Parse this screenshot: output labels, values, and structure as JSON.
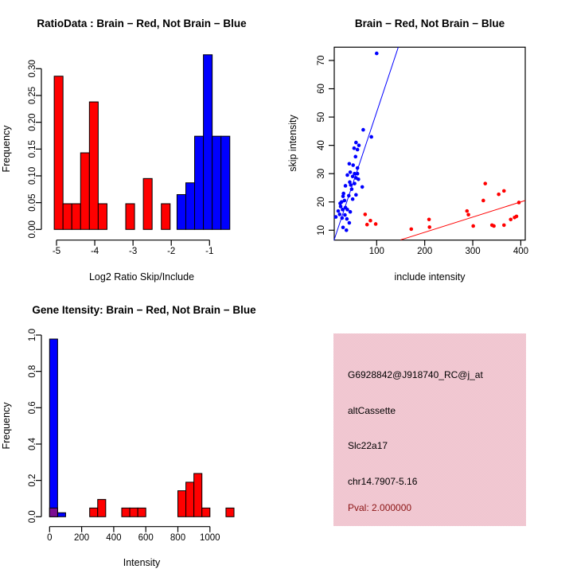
{
  "chart_data": [
    {
      "id": "ratio-histogram",
      "type": "bar",
      "title": "RatioData : Brain − Red, Not Brain − Blue",
      "xlabel": "Log2 Ratio Skip/Include",
      "ylabel": "Frequency",
      "xlim": [
        -5.3,
        -0.3
      ],
      "ylim": [
        0,
        0.33
      ],
      "grid": false,
      "xticks": {
        "values": [
          -5,
          -4,
          -3,
          -2,
          -1
        ],
        "labels": [
          "-5",
          "-4",
          "-3",
          "-2",
          "-1"
        ]
      },
      "yticks": {
        "values": [
          0,
          0.05,
          0.1,
          0.15,
          0.2,
          0.25,
          0.3
        ],
        "labels": [
          "0.00",
          "0.05",
          "0.10",
          "0.15",
          "0.20",
          "0.25",
          "0.30"
        ]
      },
      "series": [
        {
          "name": "Brain",
          "color": "#ff0000",
          "bins": [
            [
              -5.06,
              -4.83,
              0.286
            ],
            [
              -4.83,
              -4.6,
              0.048
            ],
            [
              -4.6,
              -4.37,
              0.048
            ],
            [
              -4.37,
              -4.14,
              0.143
            ],
            [
              -4.14,
              -3.91,
              0.238
            ],
            [
              -3.91,
              -3.68,
              0.048
            ],
            [
              -3.19,
              -2.96,
              0.048
            ],
            [
              -2.73,
              -2.5,
              0.095
            ],
            [
              -2.26,
              -2.03,
              0.048
            ]
          ]
        },
        {
          "name": "Not Brain",
          "color": "#0000ff",
          "bins": [
            [
              -1.85,
              -1.62,
              0.065
            ],
            [
              -1.62,
              -1.39,
              0.087
            ],
            [
              -1.39,
              -1.16,
              0.174
            ],
            [
              -1.16,
              -0.93,
              0.326
            ],
            [
              -0.93,
              -0.7,
              0.174
            ],
            [
              -0.7,
              -0.47,
              0.174
            ]
          ]
        }
      ]
    },
    {
      "id": "intensity-scatter",
      "type": "scatter",
      "title": "Brain − Red, Not Brain − Blue",
      "xlabel": "include intensity",
      "ylabel": "skip intensity",
      "xlim": [
        11,
        410
      ],
      "ylim": [
        6.3,
        75
      ],
      "grid": false,
      "xticks": {
        "values": [
          100,
          200,
          300,
          400
        ],
        "labels": [
          "100",
          "200",
          "300",
          "400"
        ]
      },
      "yticks": {
        "values": [
          10,
          20,
          30,
          40,
          50,
          60,
          70
        ],
        "labels": [
          "10",
          "20",
          "30",
          "40",
          "50",
          "60",
          "70"
        ]
      },
      "series": [
        {
          "name": "Not Brain",
          "color": "#0000ff",
          "fit_line": {
            "x1": 11.3,
            "y1": 6.5,
            "x2": 145,
            "y2": 74.7
          },
          "points": [
            [
              100,
              72.5
            ],
            [
              72,
              45.5
            ],
            [
              89,
              43
            ],
            [
              57,
              41
            ],
            [
              63,
              40
            ],
            [
              53,
              39
            ],
            [
              60,
              38.5
            ],
            [
              56,
              36
            ],
            [
              43,
              33.5
            ],
            [
              51,
              33
            ],
            [
              60,
              32
            ],
            [
              45,
              30.5
            ],
            [
              54,
              30
            ],
            [
              60,
              30
            ],
            [
              39,
              29.5
            ],
            [
              50,
              29
            ],
            [
              57,
              28.5
            ],
            [
              62,
              28
            ],
            [
              44,
              27
            ],
            [
              46,
              26
            ],
            [
              54,
              26.5
            ],
            [
              70,
              25.3
            ],
            [
              35,
              25.7
            ],
            [
              48,
              24.5
            ],
            [
              57,
              22.5
            ],
            [
              42,
              22.2
            ],
            [
              31,
              23
            ],
            [
              30,
              22
            ],
            [
              50,
              21
            ],
            [
              33,
              20.5
            ],
            [
              27,
              20
            ],
            [
              24,
              19.5
            ],
            [
              25,
              18.4
            ],
            [
              35,
              18
            ],
            [
              29,
              17.3
            ],
            [
              39,
              17.3
            ],
            [
              20,
              16.8
            ],
            [
              45,
              16.5
            ],
            [
              23,
              15.6
            ],
            [
              34,
              15.4
            ],
            [
              15,
              14.7
            ],
            [
              28,
              14.3
            ],
            [
              38,
              14
            ],
            [
              43,
              12.6
            ],
            [
              30,
              11
            ],
            [
              37,
              10
            ]
          ]
        },
        {
          "name": "Brain",
          "color": "#ff0000",
          "fit_line": {
            "x1": 150,
            "y1": 6.6,
            "x2": 409,
            "y2": 20.5
          },
          "points": [
            [
              76,
              15.6
            ],
            [
              87,
              13.4
            ],
            [
              80,
              12
            ],
            [
              98,
              12.2
            ],
            [
              172,
              10.4
            ],
            [
              209,
              13.8
            ],
            [
              210,
              11.1
            ],
            [
              288,
              16.8
            ],
            [
              291,
              15.5
            ],
            [
              301,
              11.5
            ],
            [
              322,
              20.5
            ],
            [
              326,
              26.5
            ],
            [
              340,
              11.8
            ],
            [
              344,
              11.5
            ],
            [
              354,
              22.7
            ],
            [
              365,
              23.9
            ],
            [
              365,
              11.8
            ],
            [
              379,
              13.8
            ],
            [
              387,
              14.5
            ],
            [
              391,
              14.9
            ],
            [
              396,
              19.8
            ]
          ]
        }
      ]
    },
    {
      "id": "gene-intensity-histogram",
      "type": "bar",
      "title": "Gene Itensity: Brain − Red, Not Brain − Blue",
      "xlabel": "Intensity",
      "ylabel": "Frequency",
      "xlim": [
        0,
        1150
      ],
      "ylim": [
        0,
        1.0
      ],
      "grid": false,
      "xticks": {
        "values": [
          0,
          200,
          400,
          600,
          800,
          1000
        ],
        "labels": [
          "0",
          "200",
          "400",
          "600",
          "800",
          "1000"
        ]
      },
      "yticks": {
        "values": [
          0,
          0.2,
          0.4,
          0.6,
          0.8,
          1.0
        ],
        "labels": [
          "0.0",
          "0.2",
          "0.4",
          "0.6",
          "0.8",
          "1.0"
        ]
      },
      "series": [
        {
          "name": "Not Brain",
          "color": "#0000ff",
          "bins": [
            [
              0,
              50,
              0.978
            ],
            [
              50,
              100,
              0.022
            ]
          ]
        },
        {
          "name": "Overlap",
          "color": "#7b0d91",
          "bins": [
            [
              0,
              50,
              0.048
            ]
          ]
        },
        {
          "name": "Brain",
          "color": "#ff0000",
          "bins": [
            [
              250,
              300,
              0.048
            ],
            [
              300,
              350,
              0.095
            ],
            [
              450,
              500,
              0.048
            ],
            [
              500,
              550,
              0.048
            ],
            [
              550,
              600,
              0.048
            ],
            [
              800,
              850,
              0.143
            ],
            [
              850,
              900,
              0.19
            ],
            [
              900,
              950,
              0.238
            ],
            [
              950,
              1000,
              0.048
            ],
            [
              1100,
              1150,
              0.048
            ]
          ]
        }
      ]
    }
  ],
  "info_panel": {
    "probe_id": "G6928842@J918740_RC@j_at",
    "event_type": "altCassette",
    "gene_symbol": "Slc22a17",
    "location": "chr14.7907-5.16",
    "pval_label": "Pval: 2.000000",
    "bg_color": "#f2c5cf",
    "bg_dither_light": "#f6ccd4",
    "bg_dither_dark": "#ebc2ce",
    "pval_color": "#8b1414",
    "text_color": "#000000"
  }
}
